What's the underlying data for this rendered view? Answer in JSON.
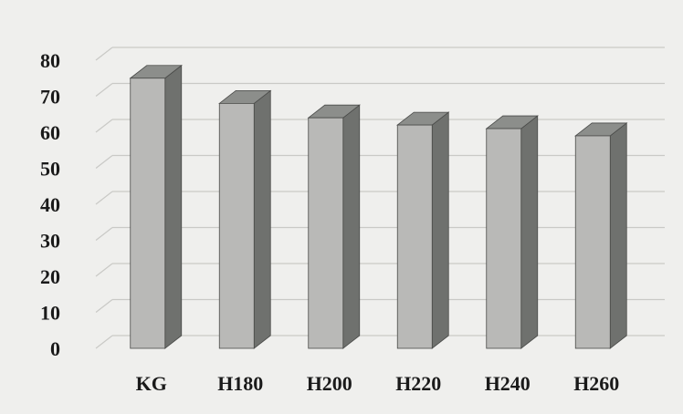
{
  "chart_data": {
    "type": "bar",
    "categories": [
      "KG",
      "H180",
      "H200",
      "H220",
      "H240",
      "H260"
    ],
    "values": [
      75,
      68,
      64,
      62,
      61,
      59
    ],
    "title": "",
    "xlabel": "",
    "ylabel": "",
    "ylim": [
      0,
      80
    ],
    "yticks": [
      "0",
      "10",
      "20",
      "30",
      "40",
      "50",
      "60",
      "70",
      "80"
    ],
    "grid": true,
    "style": "3d-column",
    "colors": {
      "bar_front": "#b9b9b7",
      "bar_side": "#6f716e",
      "bar_top": "#8c8e8b",
      "gridline": "#c9c9c6",
      "background": "#efefed"
    }
  }
}
